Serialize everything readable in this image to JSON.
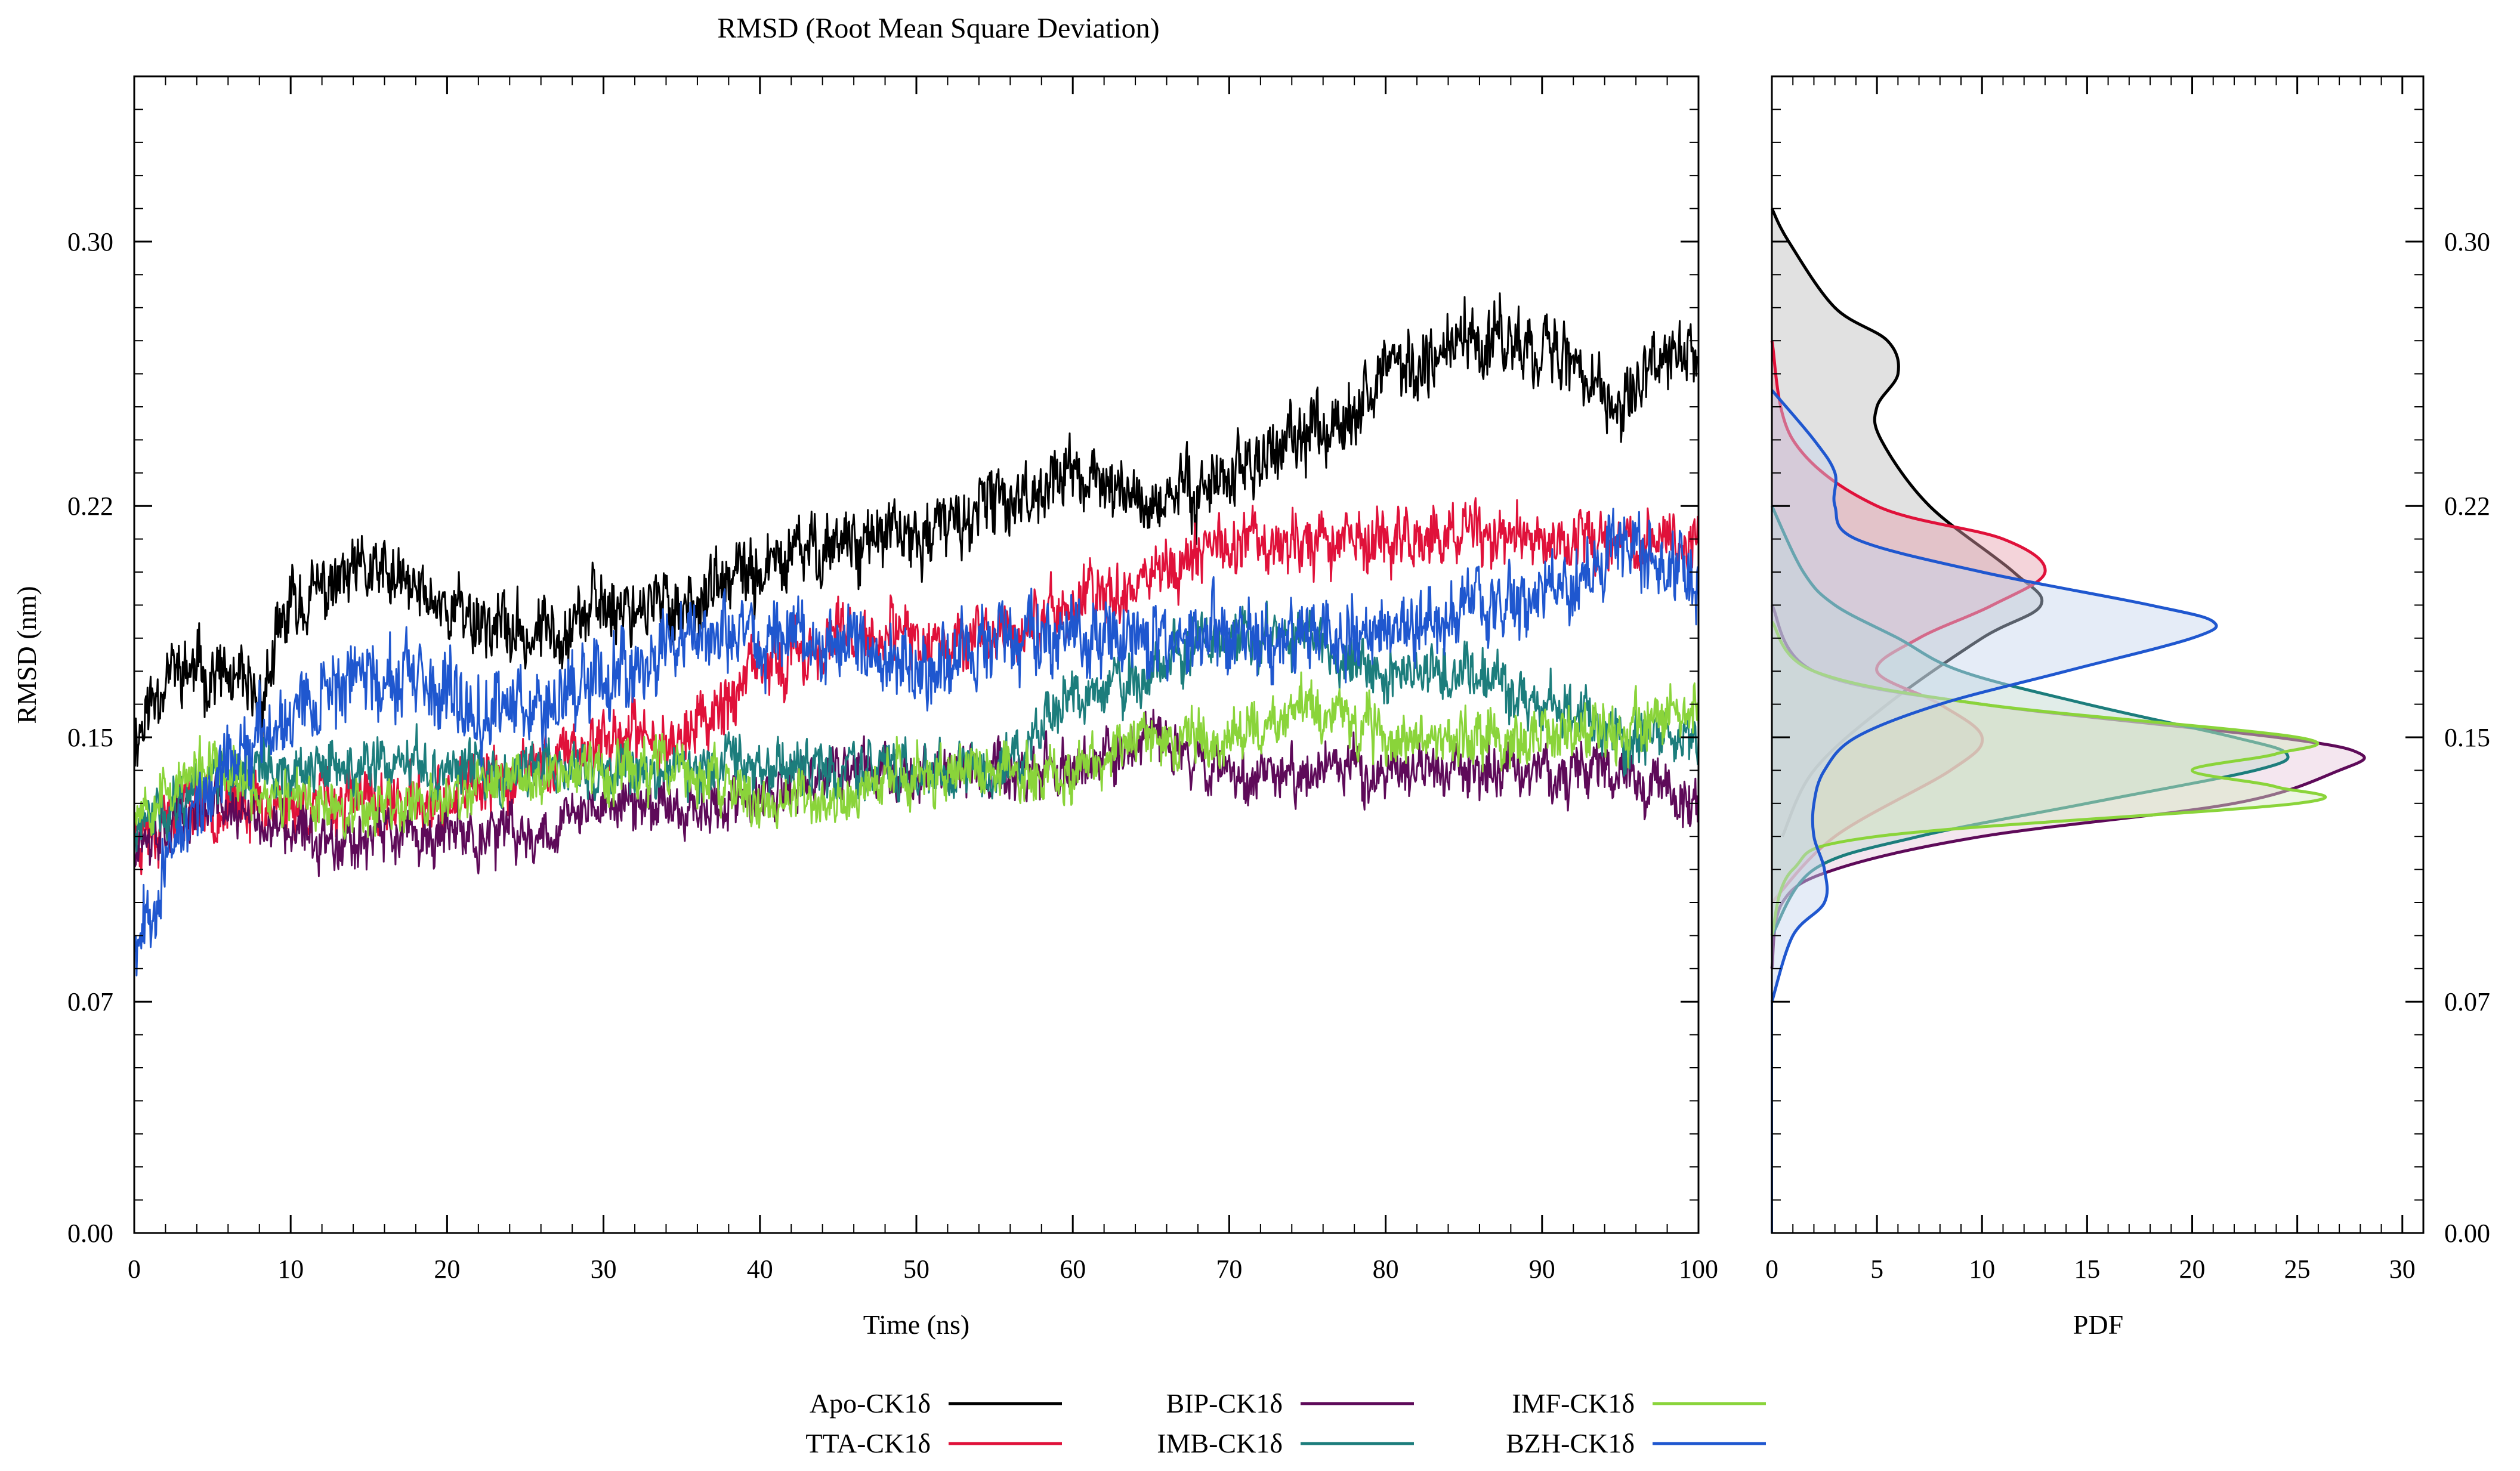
{
  "chart_data": [
    {
      "type": "line",
      "title": "RMSD (Root Mean Square Deviation)",
      "xlabel": "Time (ns)",
      "ylabel": "RMSD (nm)",
      "xlim": [
        0,
        100
      ],
      "ylim": [
        0,
        0.35
      ],
      "xticks": [
        0,
        10,
        20,
        30,
        40,
        50,
        60,
        70,
        80,
        90,
        100
      ],
      "yticks": [
        0.0,
        0.07,
        0.15,
        0.22,
        0.3
      ],
      "ytick_labels": [
        "0.00",
        "0.07",
        "0.15",
        "0.22",
        "0.30"
      ],
      "xtick_labels": [
        "0",
        "10",
        "20",
        "30",
        "40",
        "50",
        "60",
        "70",
        "80",
        "90",
        "100"
      ],
      "legend_position": "bottom-center",
      "series": [
        {
          "name": "Apo-CK1δ",
          "color": "#000000",
          "noise": 0.01,
          "seed": 11,
          "x": [
            0,
            2,
            5,
            8,
            10,
            15,
            20,
            25,
            30,
            35,
            40,
            45,
            50,
            55,
            60,
            65,
            70,
            75,
            80,
            85,
            90,
            95,
            100
          ],
          "y": [
            0.15,
            0.17,
            0.17,
            0.16,
            0.19,
            0.2,
            0.19,
            0.18,
            0.19,
            0.19,
            0.2,
            0.21,
            0.21,
            0.22,
            0.23,
            0.22,
            0.23,
            0.24,
            0.26,
            0.27,
            0.27,
            0.25,
            0.27
          ]
        },
        {
          "name": "TTA-CK1δ",
          "color": "#e0113a",
          "noise": 0.009,
          "seed": 23,
          "x": [
            0,
            3,
            5,
            10,
            15,
            20,
            25,
            30,
            35,
            40,
            45,
            50,
            55,
            60,
            65,
            70,
            75,
            80,
            85,
            90,
            95,
            100
          ],
          "y": [
            0.12,
            0.13,
            0.13,
            0.13,
            0.13,
            0.13,
            0.14,
            0.15,
            0.15,
            0.17,
            0.18,
            0.18,
            0.18,
            0.19,
            0.2,
            0.21,
            0.21,
            0.21,
            0.21,
            0.21,
            0.21,
            0.21
          ]
        },
        {
          "name": "BIP-CK1δ",
          "color": "#5e0a59",
          "noise": 0.008,
          "seed": 37,
          "x": [
            0,
            5,
            10,
            15,
            20,
            25,
            30,
            35,
            40,
            45,
            50,
            55,
            60,
            65,
            70,
            75,
            80,
            85,
            90,
            95,
            100
          ],
          "y": [
            0.12,
            0.13,
            0.12,
            0.12,
            0.12,
            0.12,
            0.13,
            0.13,
            0.13,
            0.14,
            0.14,
            0.14,
            0.14,
            0.15,
            0.14,
            0.14,
            0.14,
            0.14,
            0.14,
            0.14,
            0.13
          ]
        },
        {
          "name": "IMB-CK1δ",
          "color": "#1c7d7c",
          "noise": 0.008,
          "seed": 41,
          "x": [
            0,
            5,
            10,
            15,
            20,
            25,
            30,
            35,
            40,
            45,
            50,
            55,
            60,
            65,
            70,
            75,
            80,
            85,
            90,
            95,
            100
          ],
          "y": [
            0.12,
            0.14,
            0.14,
            0.14,
            0.14,
            0.14,
            0.14,
            0.14,
            0.14,
            0.14,
            0.14,
            0.14,
            0.16,
            0.17,
            0.18,
            0.18,
            0.17,
            0.17,
            0.16,
            0.15,
            0.15
          ]
        },
        {
          "name": "IMF-CK1δ",
          "color": "#8ad43a",
          "noise": 0.008,
          "seed": 53,
          "x": [
            0,
            5,
            10,
            15,
            20,
            25,
            30,
            35,
            40,
            45,
            50,
            55,
            60,
            65,
            70,
            75,
            80,
            85,
            90,
            95,
            100
          ],
          "y": [
            0.13,
            0.14,
            0.13,
            0.13,
            0.13,
            0.14,
            0.14,
            0.14,
            0.13,
            0.13,
            0.14,
            0.14,
            0.14,
            0.15,
            0.15,
            0.16,
            0.15,
            0.15,
            0.15,
            0.15,
            0.16
          ]
        },
        {
          "name": "BZH-CK1δ",
          "color": "#1f57cf",
          "noise": 0.011,
          "seed": 67,
          "x": [
            0,
            2,
            4,
            6,
            10,
            15,
            20,
            25,
            30,
            35,
            40,
            45,
            50,
            55,
            60,
            65,
            70,
            75,
            80,
            85,
            90,
            95,
            100
          ],
          "y": [
            0.09,
            0.11,
            0.13,
            0.14,
            0.16,
            0.17,
            0.16,
            0.16,
            0.17,
            0.18,
            0.18,
            0.18,
            0.17,
            0.18,
            0.18,
            0.18,
            0.18,
            0.18,
            0.18,
            0.19,
            0.19,
            0.21,
            0.2
          ]
        }
      ]
    },
    {
      "type": "area",
      "orientation": "horizontal",
      "xlabel": "PDF",
      "xlim": [
        0,
        31
      ],
      "ylim": [
        0,
        0.35
      ],
      "xticks": [
        0,
        5,
        10,
        15,
        20,
        25,
        30
      ],
      "xtick_labels": [
        "0",
        "5",
        "10",
        "15",
        "20",
        "25",
        "30"
      ],
      "yticks": [
        0.0,
        0.07,
        0.15,
        0.22,
        0.3
      ],
      "ytick_labels": [
        "0.00",
        "0.07",
        "0.15",
        "0.22",
        "0.30"
      ],
      "series": [
        {
          "name": "Apo-CK1δ",
          "color": "#000000",
          "fill": "#bdbdbd",
          "rmsd": [
            0.12,
            0.14,
            0.16,
            0.18,
            0.19,
            0.2,
            0.22,
            0.24,
            0.25,
            0.26,
            0.27,
            0.28,
            0.3,
            0.31
          ],
          "pdf": [
            0.5,
            2.0,
            5.5,
            10.0,
            12.8,
            11.5,
            7.5,
            5.2,
            5.0,
            6.0,
            5.5,
            3.0,
            0.8,
            0.0
          ]
        },
        {
          "name": "TTA-CK1δ",
          "color": "#e0113a",
          "fill": "#e6a0ae",
          "rmsd": [
            0.1,
            0.12,
            0.14,
            0.15,
            0.16,
            0.17,
            0.18,
            0.19,
            0.2,
            0.21,
            0.22,
            0.24,
            0.27
          ],
          "pdf": [
            0.0,
            3.0,
            8.5,
            10.0,
            8.0,
            5.0,
            7.0,
            10.5,
            13.0,
            11.0,
            5.0,
            1.0,
            0.0
          ]
        },
        {
          "name": "BIP-CK1δ",
          "color": "#5e0a59",
          "fill": "#e6c8dc",
          "rmsd": [
            0.08,
            0.1,
            0.11,
            0.12,
            0.13,
            0.14,
            0.145,
            0.15,
            0.16,
            0.17,
            0.19
          ],
          "pdf": [
            0.0,
            0.5,
            3.0,
            10.0,
            22.0,
            27.0,
            28.0,
            24.0,
            10.0,
            2.0,
            0.0
          ]
        },
        {
          "name": "IMB-CK1δ",
          "color": "#1c7d7c",
          "fill": "#bcd8ce",
          "rmsd": [
            0.09,
            0.11,
            0.12,
            0.13,
            0.14,
            0.145,
            0.15,
            0.16,
            0.17,
            0.18,
            0.19,
            0.2,
            0.22
          ],
          "pdf": [
            0.0,
            2.0,
            7.0,
            15.0,
            23.0,
            24.5,
            22.0,
            15.0,
            9.0,
            6.0,
            3.0,
            1.5,
            0.0
          ]
        },
        {
          "name": "IMF-CK1δ",
          "color": "#8ad43a",
          "fill": "#d4e9c2",
          "rmsd": [
            0.09,
            0.11,
            0.12,
            0.13,
            0.135,
            0.14,
            0.145,
            0.15,
            0.16,
            0.17,
            0.185
          ],
          "pdf": [
            0.0,
            1.0,
            5.0,
            25.0,
            24.0,
            20.0,
            24.0,
            25.0,
            10.0,
            2.0,
            0.0
          ]
        },
        {
          "name": "BZH-CK1δ",
          "color": "#1f57cf",
          "fill": "#c5d5ee",
          "rmsd": [
            0.07,
            0.09,
            0.1,
            0.11,
            0.12,
            0.13,
            0.14,
            0.15,
            0.16,
            0.17,
            0.18,
            0.185,
            0.19,
            0.2,
            0.21,
            0.22,
            0.23,
            0.24,
            0.255
          ],
          "pdf": [
            0.0,
            1.0,
            2.5,
            2.5,
            2.0,
            2.0,
            2.5,
            4.0,
            8.0,
            14.0,
            20.0,
            21.0,
            18.0,
            10.0,
            4.0,
            3.0,
            3.0,
            2.0,
            0.0
          ]
        }
      ]
    }
  ]
}
